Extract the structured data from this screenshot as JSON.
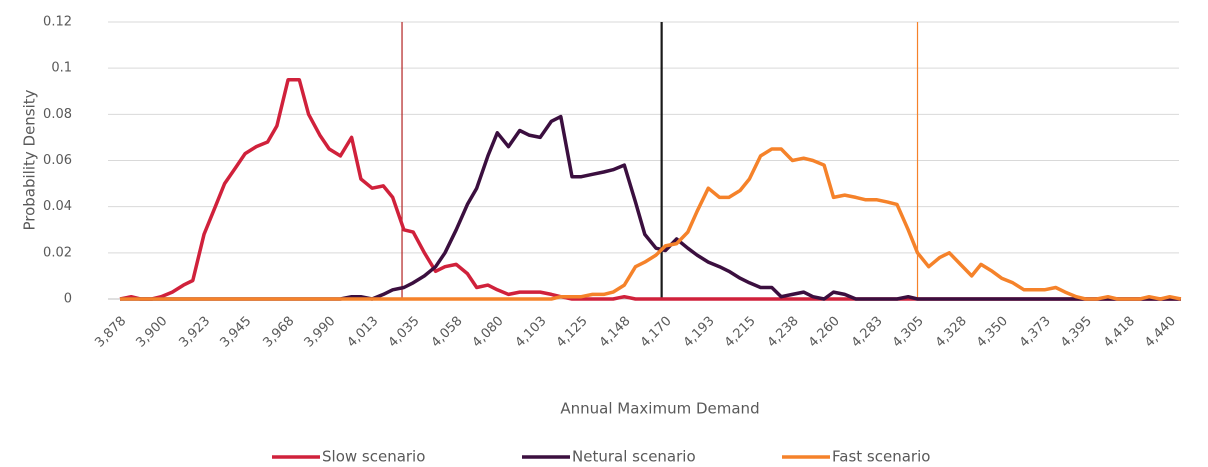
{
  "chart_data": {
    "type": "line",
    "y_label": "Probability Density",
    "x_label": "Annual Maximum Demand",
    "xlim": [
      3878,
      4445
    ],
    "ylim": [
      0,
      0.12
    ],
    "yticks": [
      0,
      0.02,
      0.04,
      0.06,
      0.08,
      0.1,
      0.12
    ],
    "xticks": [
      {
        "value": 3878,
        "label": "3,878"
      },
      {
        "value": 3900,
        "label": "3,900"
      },
      {
        "value": 3923,
        "label": "3,923"
      },
      {
        "value": 3945,
        "label": "3,945"
      },
      {
        "value": 3968,
        "label": "3,968"
      },
      {
        "value": 3990,
        "label": "3,990"
      },
      {
        "value": 4013,
        "label": "4,013"
      },
      {
        "value": 4035,
        "label": "4,035"
      },
      {
        "value": 4058,
        "label": "4,058"
      },
      {
        "value": 4080,
        "label": "4,080"
      },
      {
        "value": 4103,
        "label": "4,103"
      },
      {
        "value": 4125,
        "label": "4,125"
      },
      {
        "value": 4148,
        "label": "4,148"
      },
      {
        "value": 4170,
        "label": "4,170"
      },
      {
        "value": 4193,
        "label": "4,193"
      },
      {
        "value": 4215,
        "label": "4,215"
      },
      {
        "value": 4238,
        "label": "4,238"
      },
      {
        "value": 4260,
        "label": "4,260"
      },
      {
        "value": 4283,
        "label": "4,283"
      },
      {
        "value": 4305,
        "label": "4,305"
      },
      {
        "value": 4328,
        "label": "4,328"
      },
      {
        "value": 4350,
        "label": "4,350"
      },
      {
        "value": 4373,
        "label": "4,373"
      },
      {
        "value": 4395,
        "label": "4,395"
      },
      {
        "value": 4418,
        "label": "4,418"
      },
      {
        "value": 4440,
        "label": "4,440"
      }
    ],
    "grid": true,
    "legend": "bottom",
    "x": [
      3878,
      3884,
      3889,
      3895,
      3900,
      3906,
      3912,
      3917,
      3923,
      3929,
      3934,
      3940,
      3945,
      3951,
      3957,
      3962,
      3968,
      3974,
      3979,
      3985,
      3990,
      3996,
      4002,
      4007,
      4013,
      4019,
      4024,
      4030,
      4035,
      4041,
      4047,
      4052,
      4058,
      4064,
      4069,
      4075,
      4080,
      4086,
      4092,
      4097,
      4103,
      4109,
      4114,
      4120,
      4125,
      4131,
      4137,
      4142,
      4148,
      4154,
      4159,
      4165,
      4170,
      4176,
      4182,
      4187,
      4193,
      4199,
      4204,
      4210,
      4215,
      4221,
      4227,
      4232,
      4238,
      4244,
      4249,
      4255,
      4260,
      4266,
      4272,
      4277,
      4283,
      4289,
      4294,
      4300,
      4305,
      4311,
      4317,
      4322,
      4328,
      4334,
      4339,
      4345,
      4350,
      4356,
      4362,
      4367,
      4373,
      4379,
      4384,
      4390,
      4395,
      4401,
      4407,
      4412,
      4418,
      4424,
      4429,
      4435,
      4440,
      4446
    ],
    "series": [
      {
        "name": "Slow scenario",
        "color": "#d0213b",
        "values": [
          0,
          0.001,
          0,
          0,
          0.001,
          0.003,
          0.006,
          0.008,
          0.028,
          0.04,
          0.05,
          0.057,
          0.063,
          0.066,
          0.068,
          0.075,
          0.095,
          0.095,
          0.08,
          0.071,
          0.065,
          0.062,
          0.07,
          0.052,
          0.048,
          0.049,
          0.044,
          0.03,
          0.029,
          0.02,
          0.012,
          0.014,
          0.015,
          0.011,
          0.005,
          0.006,
          0.004,
          0.002,
          0.003,
          0.003,
          0.003,
          0.002,
          0.001,
          0,
          0,
          0,
          0,
          0,
          0.001,
          0,
          0,
          0,
          0,
          0,
          0,
          0,
          0,
          0,
          0,
          0,
          0,
          0,
          0,
          0,
          0,
          0,
          0,
          0,
          0,
          0,
          0,
          0,
          0,
          0,
          0,
          0,
          0,
          0,
          0,
          0,
          0,
          0,
          0,
          0,
          0,
          0,
          0,
          0,
          0,
          0,
          0,
          0,
          0,
          0,
          0,
          0,
          0,
          0,
          0,
          0,
          0,
          0
        ]
      },
      {
        "name": "Netural scenario",
        "color": "#3b0f3f",
        "values": [
          0,
          0,
          0,
          0,
          0,
          0,
          0,
          0,
          0,
          0,
          0,
          0,
          0,
          0,
          0,
          0,
          0,
          0,
          0,
          0,
          0,
          0,
          0.001,
          0.001,
          0,
          0.002,
          0.004,
          0.005,
          0.007,
          0.01,
          0.014,
          0.02,
          0.03,
          0.041,
          0.048,
          0.062,
          0.072,
          0.066,
          0.073,
          0.071,
          0.07,
          0.077,
          0.079,
          0.053,
          0.053,
          0.054,
          0.055,
          0.056,
          0.058,
          0.042,
          0.028,
          0.022,
          0.021,
          0.026,
          0.022,
          0.019,
          0.016,
          0.014,
          0.012,
          0.009,
          0.007,
          0.005,
          0.005,
          0.001,
          0.002,
          0.003,
          0.001,
          0,
          0.003,
          0.002,
          0,
          0,
          0,
          0,
          0,
          0.001,
          0,
          0,
          0,
          0,
          0,
          0,
          0,
          0,
          0,
          0,
          0,
          0,
          0,
          0,
          0,
          0,
          0,
          0,
          0,
          0,
          0,
          0,
          0,
          0,
          0,
          0
        ]
      },
      {
        "name": "Fast scenario",
        "color": "#f5822a",
        "values": [
          0,
          0,
          0,
          0,
          0,
          0,
          0,
          0,
          0,
          0,
          0,
          0,
          0,
          0,
          0,
          0,
          0,
          0,
          0,
          0,
          0,
          0,
          0,
          0,
          0,
          0,
          0,
          0,
          0,
          0,
          0,
          0,
          0,
          0,
          0,
          0,
          0,
          0,
          0,
          0,
          0,
          0,
          0.001,
          0.001,
          0.001,
          0.002,
          0.002,
          0.003,
          0.006,
          0.014,
          0.016,
          0.019,
          0.023,
          0.024,
          0.029,
          0.038,
          0.048,
          0.044,
          0.044,
          0.047,
          0.052,
          0.062,
          0.065,
          0.065,
          0.06,
          0.061,
          0.06,
          0.058,
          0.044,
          0.045,
          0.044,
          0.043,
          0.043,
          0.042,
          0.041,
          0.03,
          0.02,
          0.014,
          0.018,
          0.02,
          0.015,
          0.01,
          0.015,
          0.012,
          0.009,
          0.007,
          0.004,
          0.004,
          0.004,
          0.005,
          0.003,
          0.001,
          0,
          0,
          0.001,
          0,
          0,
          0,
          0.001,
          0,
          0.001,
          0
        ]
      }
    ],
    "reference_lines": [
      {
        "value": 4029,
        "color": "#b22222",
        "line_width": 1.2
      },
      {
        "value": 4168,
        "color": "#1a1a1a",
        "line_width": 2.2
      },
      {
        "value": 4305,
        "color": "#f5822a",
        "line_width": 1.2
      }
    ]
  }
}
